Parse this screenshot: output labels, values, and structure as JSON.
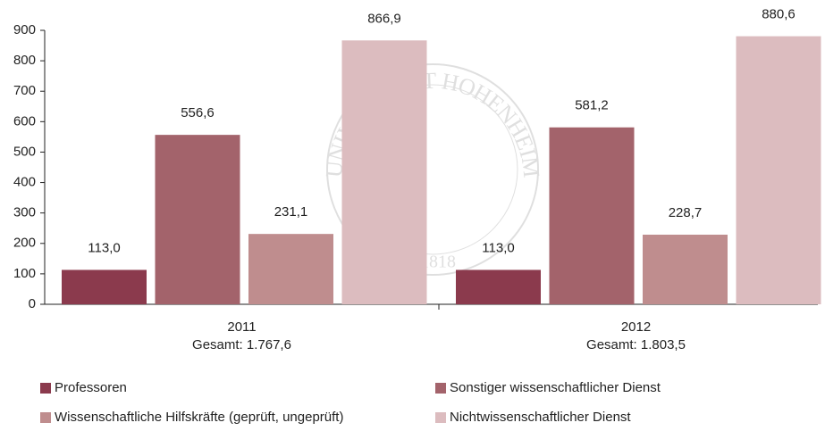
{
  "chart_data": {
    "type": "bar",
    "categories": [
      "2011",
      "2012"
    ],
    "category_notes": [
      "Gesamt: 1.767,6",
      "Gesamt:  1.803,5"
    ],
    "series": [
      {
        "name": "Professoren",
        "color": "#8b3a4d",
        "values": [
          113.0,
          113.0
        ],
        "value_labels": [
          "113,0",
          "113,0"
        ]
      },
      {
        "name": "Sonstiger wissenschaftlicher Dienst",
        "color": "#a3636b",
        "values": [
          556.6,
          581.2
        ],
        "value_labels": [
          "556,6",
          "581,2"
        ]
      },
      {
        "name": "Wissenschaftliche Hilfskräfte (geprüft, ungeprüft)",
        "color": "#bf8d8e",
        "values": [
          231.1,
          228.7
        ],
        "value_labels": [
          "231,1",
          "228,7"
        ]
      },
      {
        "name": "Nichtwissenschaftlicher Dienst",
        "color": "#dcbcbf",
        "values": [
          866.9,
          880.6
        ],
        "value_labels": [
          "866,9",
          "880,6"
        ]
      }
    ],
    "ylim": [
      0,
      900
    ],
    "yticks": [
      0,
      100,
      200,
      300,
      400,
      500,
      600,
      700,
      800,
      900
    ],
    "grid": false,
    "watermark": {
      "text": "UNIVERSITÄT HOHENHEIM",
      "year": "1818"
    }
  }
}
